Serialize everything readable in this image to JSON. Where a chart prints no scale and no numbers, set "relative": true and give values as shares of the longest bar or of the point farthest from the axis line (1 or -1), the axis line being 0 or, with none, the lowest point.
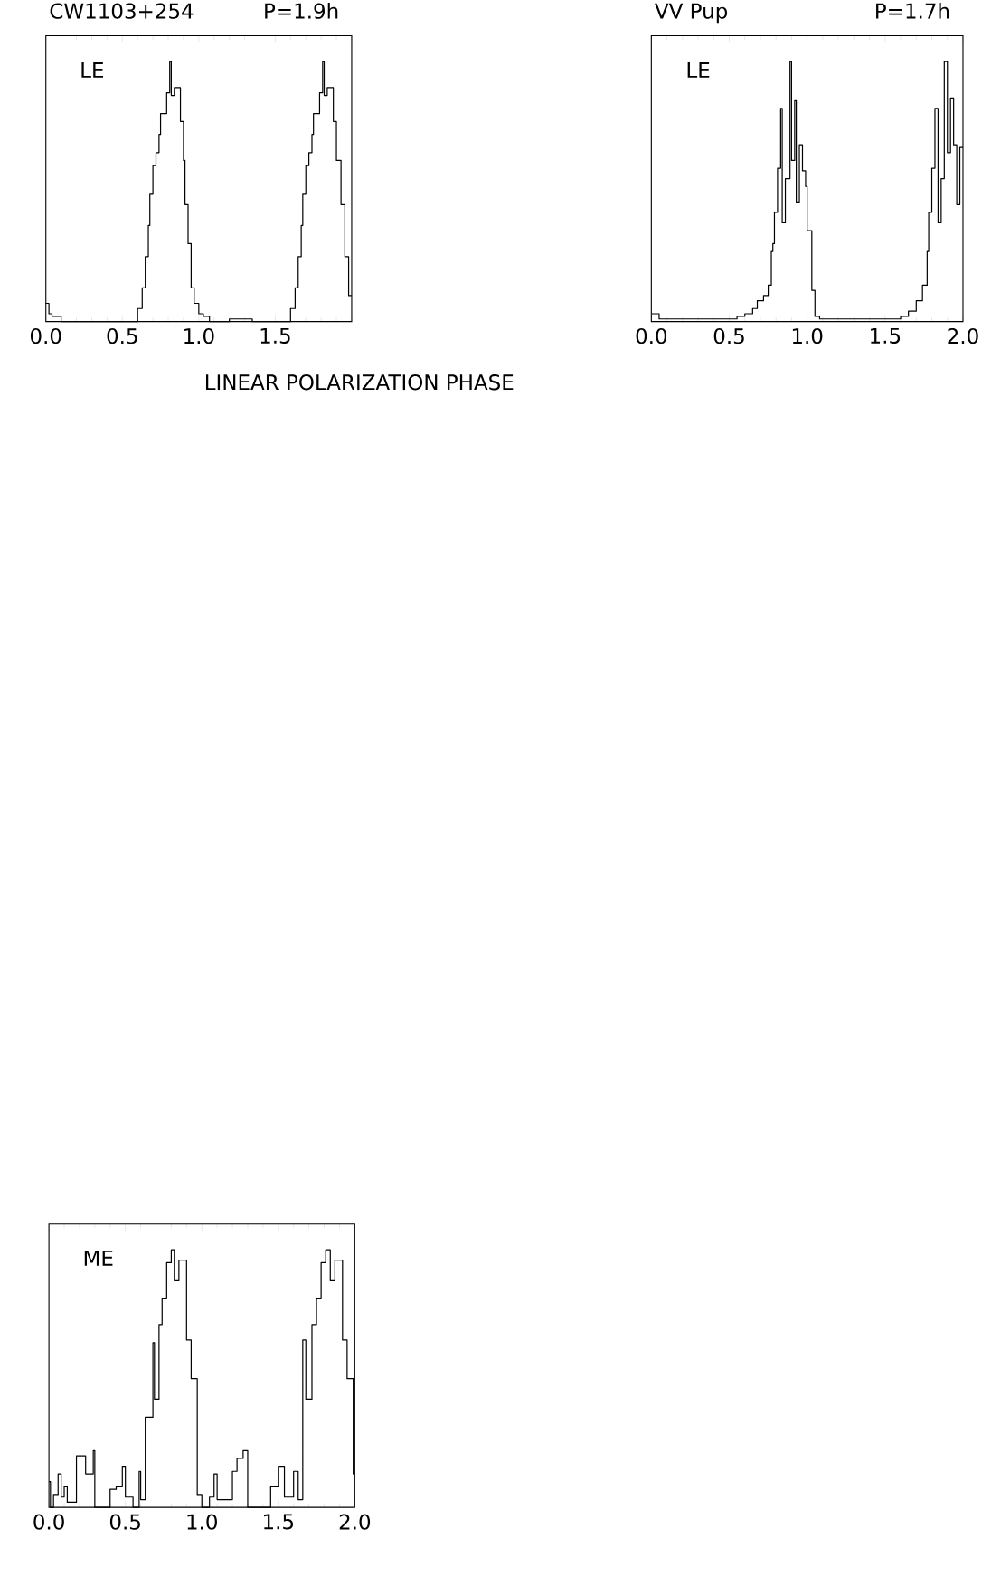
{
  "chart_data": [
    {
      "type": "step",
      "title": "CW1103+254",
      "subtitle": "P=1.9h",
      "xlabel": "LINEAR POLARIZATION PHASE",
      "annotations": [
        "LE"
      ],
      "relative": true,
      "tick_labels": "x",
      "color": "#000000",
      "xlim": [
        0,
        2
      ],
      "xticks": [
        {
          "value": 0,
          "label": "0.0"
        },
        {
          "value": 0.5,
          "label": "0.5"
        },
        {
          "value": 1,
          "label": "1.0"
        },
        {
          "value": 1.5,
          "label": "1.5"
        },
        {
          "value": 2,
          "label": null
        }
      ],
      "x": [
        0,
        0.02,
        0.04,
        0.1,
        0.6,
        0.63,
        0.65,
        0.67,
        0.68,
        0.7,
        0.72,
        0.74,
        0.75,
        0.79,
        0.81,
        0.82,
        0.84,
        0.86,
        0.88,
        0.9,
        0.91,
        0.93,
        0.95,
        0.97,
        1.0,
        1.03,
        1.07,
        1.2,
        1.3,
        1.35,
        1.6,
        1.63,
        1.65,
        1.67,
        1.68,
        1.7,
        1.72,
        1.74,
        1.75,
        1.79,
        1.81,
        1.82,
        1.84,
        1.86,
        1.88,
        1.9,
        1.93,
        1.955,
        1.98
      ],
      "values": [
        0.07,
        0.03,
        0.02,
        0,
        0.05,
        0.13,
        0.25,
        0.37,
        0.49,
        0.6,
        0.65,
        0.72,
        0.8,
        0.88,
        1.0,
        0.87,
        0.9,
        0.9,
        0.77,
        0.62,
        0.45,
        0.3,
        0.13,
        0.07,
        0.03,
        0.02,
        0,
        0.01,
        0.01,
        0,
        0.05,
        0.13,
        0.25,
        0.37,
        0.49,
        0.6,
        0.65,
        0.72,
        0.8,
        0.88,
        1.0,
        0.87,
        0.9,
        0.9,
        0.77,
        0.62,
        0.45,
        0.25,
        0.1
      ]
    },
    {
      "type": "step",
      "title": "VV Pup",
      "subtitle": "P=1.7h",
      "annotations": [
        "LE"
      ],
      "relative": true,
      "tick_labels": "x",
      "color": "#000000",
      "xlim": [
        0,
        2
      ],
      "xticks": [
        {
          "value": 0,
          "label": "0.0"
        },
        {
          "value": 0.5,
          "label": "0.5"
        },
        {
          "value": 1,
          "label": "1.0"
        },
        {
          "value": 1.5,
          "label": "1.5"
        },
        {
          "value": 2,
          "label": "2.0"
        }
      ],
      "x": [
        0,
        0.05,
        0.5,
        0.55,
        0.6,
        0.65,
        0.68,
        0.72,
        0.75,
        0.77,
        0.78,
        0.79,
        0.81,
        0.83,
        0.84,
        0.86,
        0.89,
        0.9,
        0.92,
        0.93,
        0.95,
        0.97,
        0.99,
        1.0,
        1.03,
        1.05,
        1.08,
        1.5,
        1.6,
        1.65,
        1.7,
        1.74,
        1.77,
        1.78,
        1.8,
        1.82,
        1.84,
        1.86,
        1.88,
        1.9,
        1.92,
        1.94,
        1.96,
        1.98
      ],
      "values": [
        0.03,
        0.01,
        0.01,
        0.02,
        0.03,
        0.05,
        0.08,
        0.1,
        0.14,
        0.27,
        0.3,
        0.42,
        0.59,
        0.82,
        0.38,
        0.55,
        1.0,
        0.62,
        0.85,
        0.46,
        0.68,
        0.58,
        0.52,
        0.35,
        0.12,
        0.02,
        0.01,
        0.01,
        0.02,
        0.04,
        0.08,
        0.14,
        0.27,
        0.42,
        0.59,
        0.82,
        0.38,
        0.55,
        1.0,
        0.65,
        0.86,
        0.68,
        0.45,
        0.67
      ]
    },
    {
      "type": "step",
      "annotations": [
        "ME"
      ],
      "relative": true,
      "tick_labels": "x",
      "color": "#000000",
      "xlim": [
        0,
        2
      ],
      "xticks": [
        {
          "value": 0,
          "label": "0.0"
        },
        {
          "value": 0.5,
          "label": "0.5"
        },
        {
          "value": 1,
          "label": "1.0"
        },
        {
          "value": 1.5,
          "label": "1.5"
        },
        {
          "value": 2,
          "label": "2.0"
        }
      ],
      "x": [
        0,
        0.01,
        0.03,
        0.06,
        0.08,
        0.1,
        0.12,
        0.18,
        0.22,
        0.24,
        0.29,
        0.3,
        0.4,
        0.44,
        0.48,
        0.5,
        0.55,
        0.59,
        0.6,
        0.63,
        0.68,
        0.69,
        0.72,
        0.74,
        0.77,
        0.8,
        0.82,
        0.85,
        0.9,
        0.93,
        0.97,
        1.0,
        1.05,
        1.08,
        1.1,
        1.15,
        1.2,
        1.23,
        1.27,
        1.3,
        1.45,
        1.5,
        1.54,
        1.6,
        1.63,
        1.66,
        1.68,
        1.72,
        1.75,
        1.78,
        1.81,
        1.84,
        1.87,
        1.92,
        1.95,
        1.99
      ],
      "values": [
        0.1,
        0,
        0.05,
        0.13,
        0.04,
        0.08,
        0.02,
        0.2,
        0.2,
        0.13,
        0.22,
        0,
        0.07,
        0.08,
        0.16,
        0.04,
        0,
        0.14,
        0.03,
        0.35,
        0.64,
        0.42,
        0.71,
        0.81,
        0.95,
        1.0,
        0.88,
        0.96,
        0.65,
        0.5,
        0.05,
        0,
        0.04,
        0.13,
        0.03,
        0.03,
        0.14,
        0.19,
        0.22,
        0,
        0.08,
        0.16,
        0.04,
        0.14,
        0.03,
        0.65,
        0.42,
        0.71,
        0.81,
        0.95,
        1.0,
        0.88,
        0.96,
        0.65,
        0.5,
        0.13
      ]
    }
  ]
}
